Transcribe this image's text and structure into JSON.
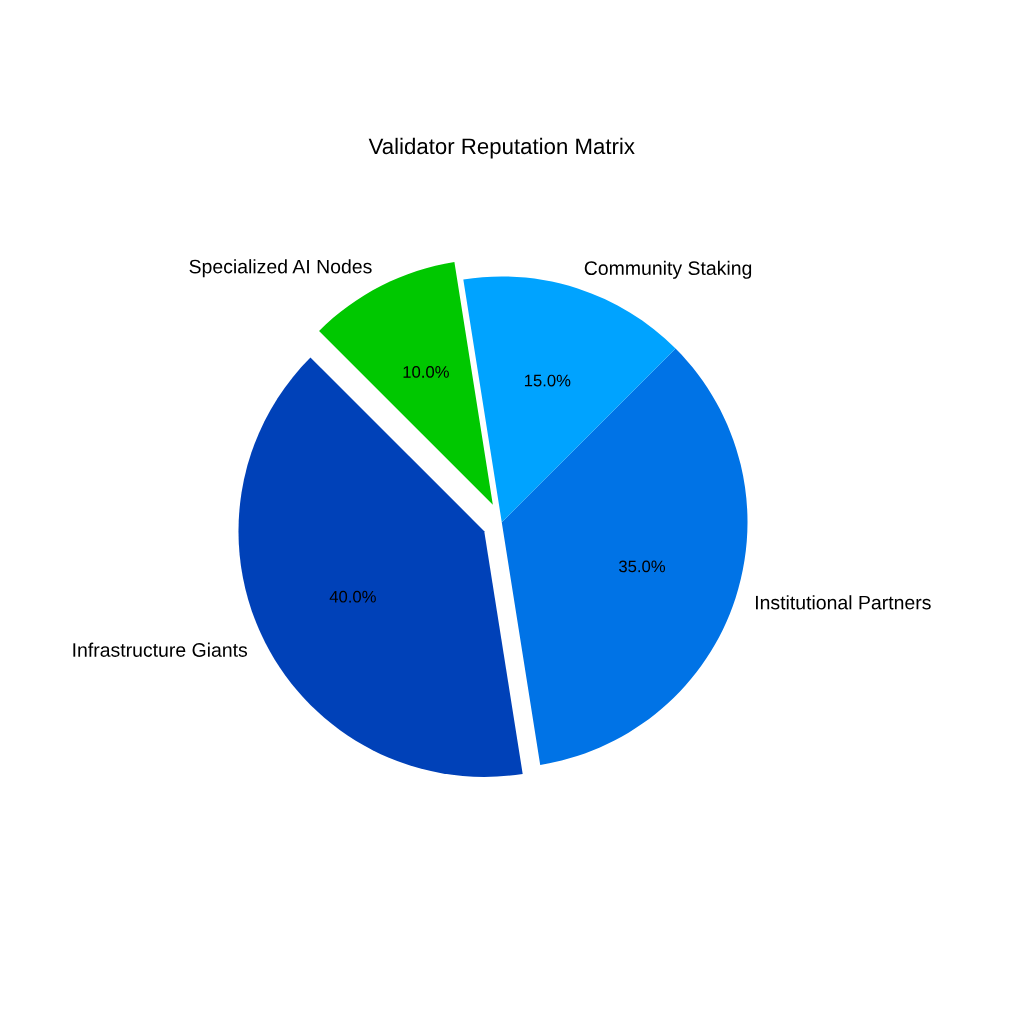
{
  "chart_data": {
    "type": "pie",
    "title": "Validator Reputation Matrix",
    "categories": [
      "Infrastructure Giants",
      "Institutional Partners",
      "Community Staking",
      "Specialized AI Nodes"
    ],
    "values": [
      40,
      35,
      15,
      10
    ],
    "colors": [
      "#0041b8",
      "#0073e6",
      "#00a3ff",
      "#00c800"
    ],
    "value_labels": [
      "40.0%",
      "35.0%",
      "15.0%",
      "10.0%"
    ]
  }
}
